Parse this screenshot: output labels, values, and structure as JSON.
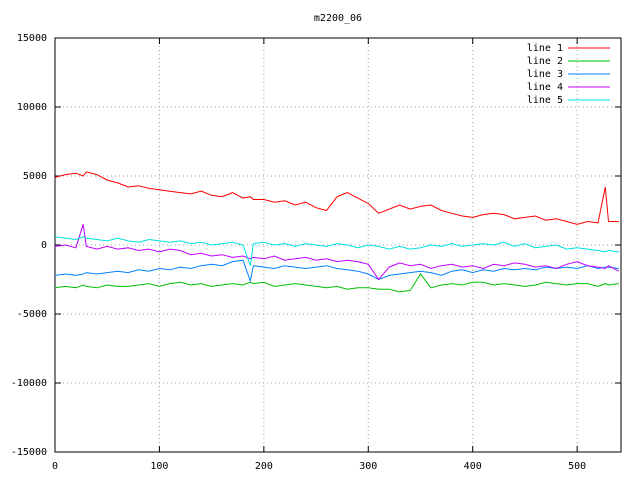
{
  "chart_data": {
    "type": "line",
    "title": "m2200_06",
    "x": [
      0,
      10,
      20,
      27,
      30,
      40,
      50,
      60,
      70,
      80,
      90,
      100,
      110,
      120,
      130,
      140,
      150,
      160,
      170,
      180,
      187,
      190,
      200,
      210,
      220,
      230,
      240,
      250,
      260,
      270,
      280,
      290,
      300,
      310,
      320,
      330,
      340,
      350,
      360,
      370,
      380,
      390,
      400,
      410,
      420,
      430,
      440,
      450,
      460,
      470,
      480,
      490,
      500,
      510,
      520,
      527,
      530,
      540
    ],
    "series": [
      {
        "name": "line 1",
        "color": "#ff0000",
        "values": [
          4900,
          5100,
          5200,
          5000,
          5300,
          5100,
          4700,
          4500,
          4200,
          4300,
          4100,
          4000,
          3900,
          3800,
          3700,
          3900,
          3600,
          3500,
          3800,
          3400,
          3500,
          3300,
          3300,
          3100,
          3200,
          2900,
          3100,
          2700,
          2500,
          3500,
          3800,
          3400,
          3000,
          2300,
          2600,
          2900,
          2600,
          2800,
          2900,
          2500,
          2300,
          2100,
          2000,
          2200,
          2300,
          2200,
          1900,
          2000,
          2100,
          1800,
          1900,
          1700,
          1500,
          1700,
          1600,
          4200,
          1700,
          1700
        ]
      },
      {
        "name": "line 2",
        "color": "#00c000",
        "values": [
          -3100,
          -3000,
          -3100,
          -2900,
          -3000,
          -3100,
          -2900,
          -3000,
          -3000,
          -2900,
          -2800,
          -3000,
          -2800,
          -2700,
          -2900,
          -2800,
          -3000,
          -2900,
          -2800,
          -2900,
          -2700,
          -2800,
          -2700,
          -3000,
          -2900,
          -2800,
          -2900,
          -3000,
          -3100,
          -3000,
          -3200,
          -3100,
          -3100,
          -3200,
          -3200,
          -3400,
          -3300,
          -2100,
          -3100,
          -2900,
          -2800,
          -2900,
          -2700,
          -2700,
          -2900,
          -2800,
          -2900,
          -3000,
          -2900,
          -2700,
          -2800,
          -2900,
          -2800,
          -2800,
          -3000,
          -2800,
          -2900,
          -2800
        ]
      },
      {
        "name": "line 3",
        "color": "#0080ff",
        "values": [
          -2200,
          -2100,
          -2200,
          -2100,
          -2000,
          -2100,
          -2000,
          -1900,
          -2000,
          -1800,
          -1900,
          -1700,
          -1800,
          -1600,
          -1700,
          -1500,
          -1400,
          -1500,
          -1200,
          -1100,
          -2600,
          -1500,
          -1600,
          -1700,
          -1500,
          -1600,
          -1700,
          -1600,
          -1500,
          -1700,
          -1800,
          -1900,
          -2100,
          -2500,
          -2200,
          -2100,
          -2000,
          -1900,
          -2000,
          -2200,
          -1900,
          -1800,
          -2000,
          -1800,
          -1900,
          -1700,
          -1800,
          -1700,
          -1800,
          -1600,
          -1700,
          -1600,
          -1700,
          -1500,
          -1700,
          -1600,
          -1600,
          -1700
        ]
      },
      {
        "name": "line 4",
        "color": "#c000ff",
        "values": [
          -100,
          0,
          -200,
          1500,
          -100,
          -300,
          -100,
          -300,
          -200,
          -400,
          -300,
          -500,
          -300,
          -400,
          -700,
          -600,
          -800,
          -700,
          -900,
          -800,
          -1000,
          -900,
          -1000,
          -800,
          -1100,
          -1000,
          -900,
          -1100,
          -1000,
          -1200,
          -1100,
          -1200,
          -1400,
          -2500,
          -1600,
          -1300,
          -1500,
          -1400,
          -1700,
          -1500,
          -1400,
          -1600,
          -1500,
          -1700,
          -1400,
          -1500,
          -1300,
          -1400,
          -1600,
          -1500,
          -1700,
          -1400,
          -1200,
          -1500,
          -1600,
          -1700,
          -1500,
          -1900
        ]
      },
      {
        "name": "line 5",
        "color": "#00e0e0",
        "values": [
          600,
          500,
          400,
          600,
          500,
          400,
          300,
          500,
          300,
          200,
          400,
          300,
          200,
          300,
          100,
          200,
          0,
          100,
          200,
          0,
          -1500,
          100,
          200,
          0,
          100,
          -100,
          100,
          0,
          -100,
          100,
          0,
          -200,
          0,
          -100,
          -300,
          -100,
          -300,
          -200,
          0,
          -100,
          100,
          -100,
          0,
          100,
          0,
          200,
          -100,
          100,
          -200,
          -100,
          0,
          -300,
          -200,
          -300,
          -400,
          -500,
          -400,
          -500
        ]
      }
    ],
    "xlim": [
      0,
      542
    ],
    "ylim": [
      -15000,
      15000
    ],
    "xticks": [
      0,
      100,
      200,
      300,
      400,
      500
    ],
    "yticks": [
      -15000,
      -10000,
      -5000,
      0,
      5000,
      10000,
      15000
    ],
    "grid": true,
    "legend": "top-right"
  }
}
